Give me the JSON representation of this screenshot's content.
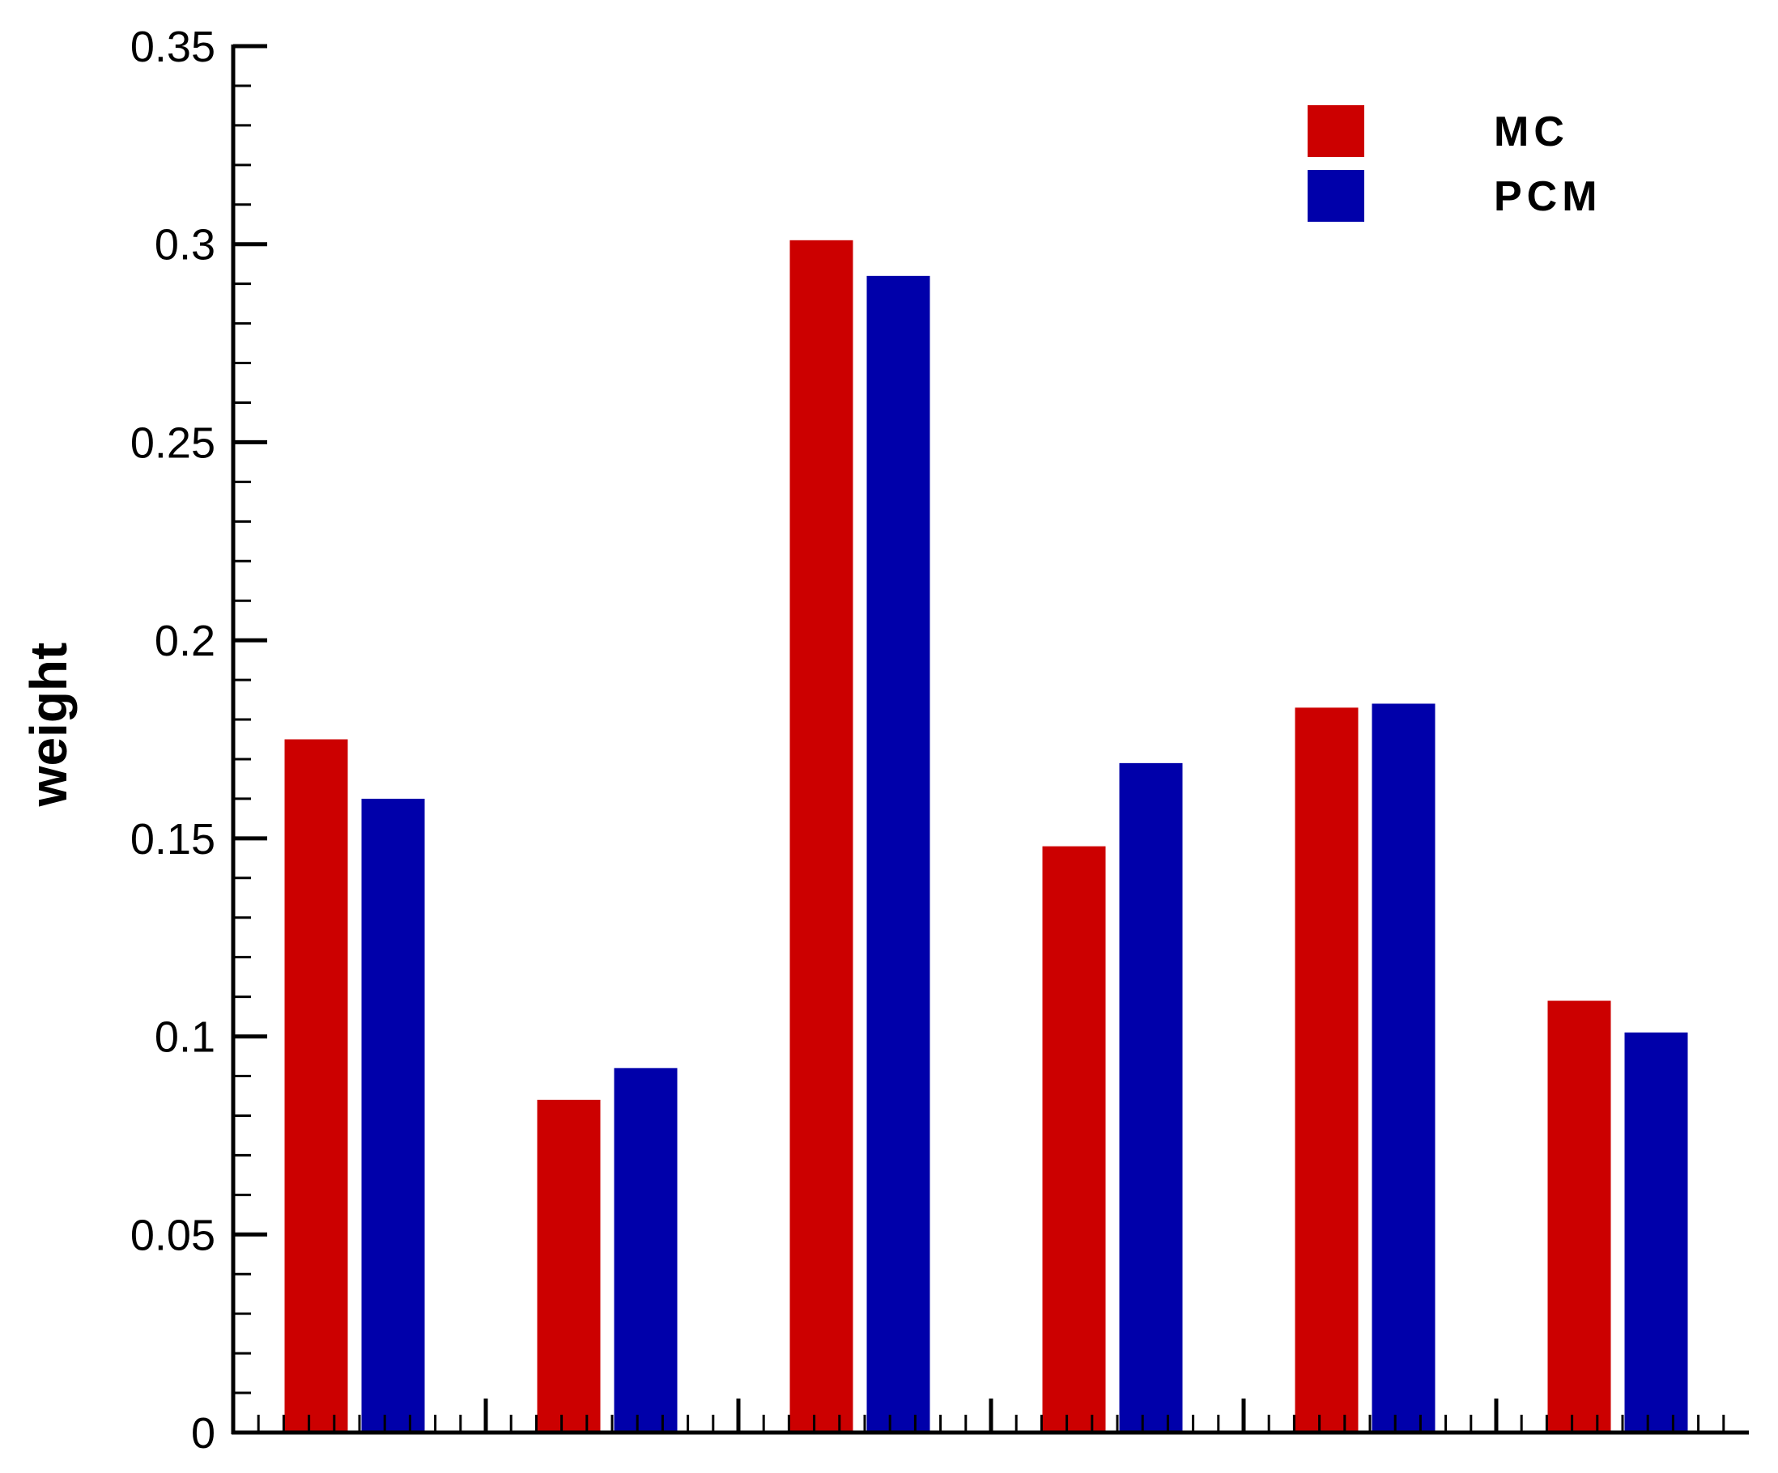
{
  "chart_data": {
    "type": "bar",
    "title": "",
    "xlabel": "",
    "ylabel": "weight",
    "ylim": [
      0,
      0.35
    ],
    "yticks": [
      0,
      0.05,
      0.1,
      0.15,
      0.2,
      0.25,
      0.3,
      0.35
    ],
    "ytick_labels": [
      "0",
      "0.05",
      "0.1",
      "0.15",
      "0.2",
      "0.25",
      "0.3",
      "0.35"
    ],
    "categories": [
      "1",
      "2",
      "3",
      "4",
      "5",
      "6"
    ],
    "show_category_labels": false,
    "grid": false,
    "legend_position": "top-right",
    "series": [
      {
        "name": "MC",
        "color": "#CC0000",
        "values": [
          0.175,
          0.084,
          0.301,
          0.148,
          0.183,
          0.109
        ]
      },
      {
        "name": "PCM",
        "color": "#0000AA",
        "values": [
          0.16,
          0.092,
          0.292,
          0.169,
          0.184,
          0.101
        ]
      }
    ]
  }
}
